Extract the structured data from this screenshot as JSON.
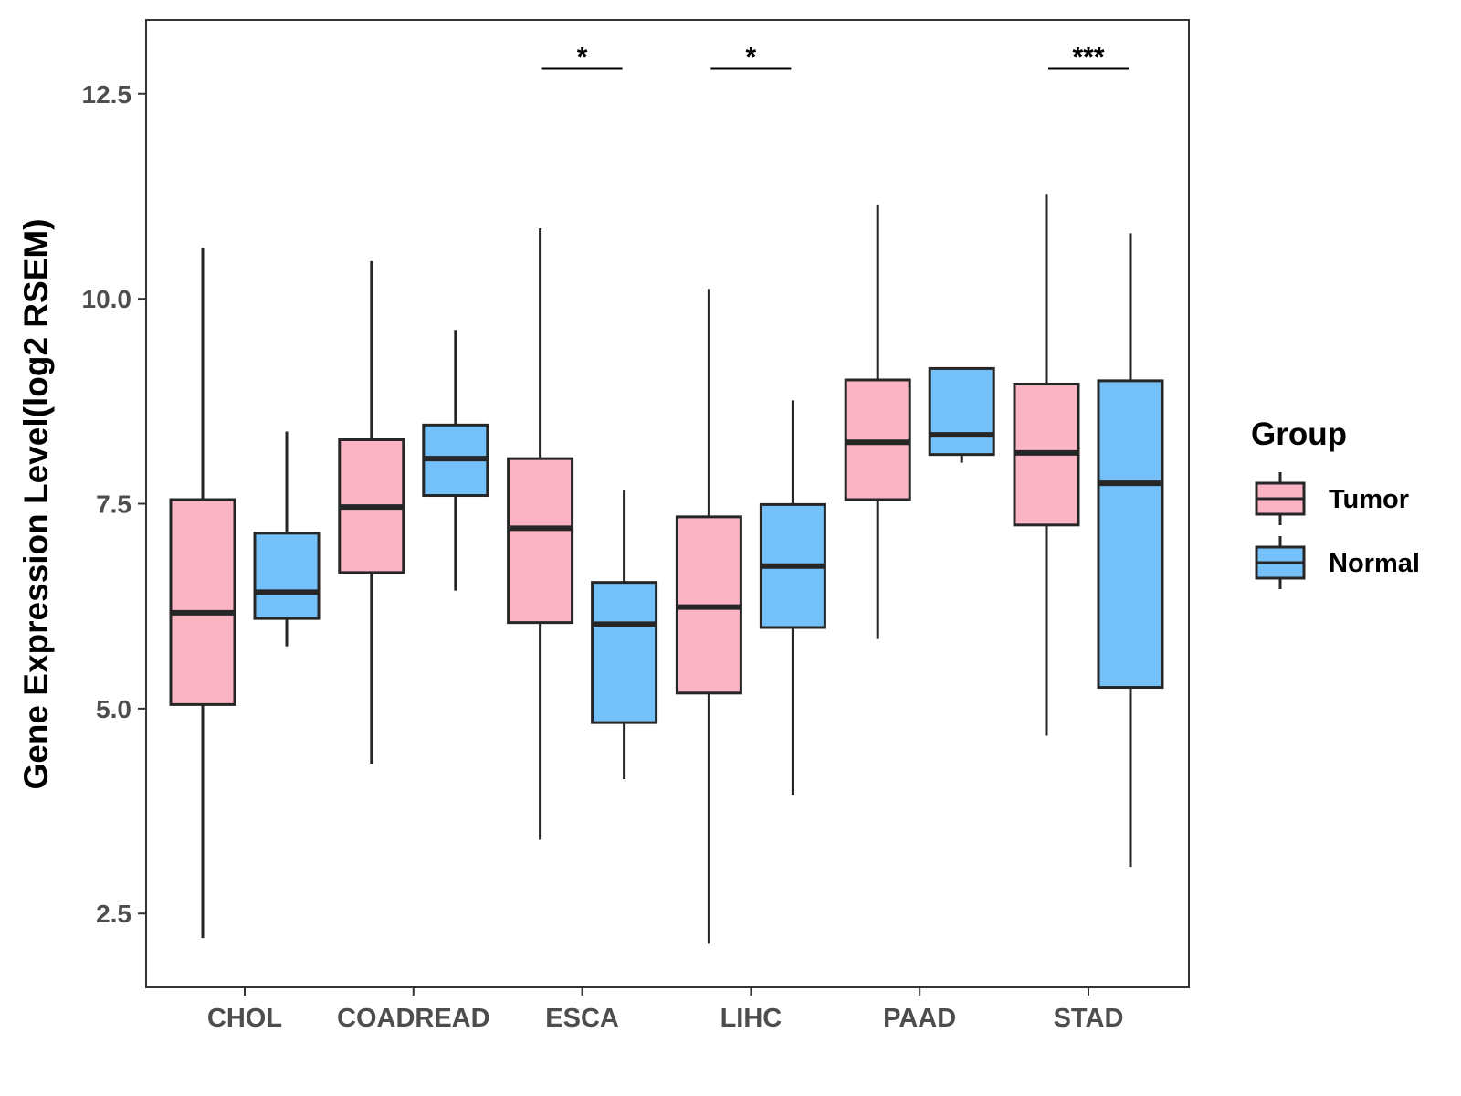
{
  "chart_data": {
    "type": "boxplot",
    "title": "",
    "xlabel": "",
    "ylabel": "Gene Expression Level(log2 RSEM)",
    "ylim": [
      1.6,
      13.4
    ],
    "y_ticks": [
      "2.5",
      "5.0",
      "7.5",
      "10.0",
      "12.5"
    ],
    "categories": [
      "CHOL",
      "COADREAD",
      "ESCA",
      "LIHC",
      "PAAD",
      "STAD"
    ],
    "legend": {
      "title": "Group",
      "position": "right",
      "entries": [
        {
          "name": "Tumor",
          "color": "#FBB4C4"
        },
        {
          "name": "Normal",
          "color": "#74C0F8"
        }
      ]
    },
    "series": [
      {
        "name": "Tumor",
        "color": "#FBB4C4",
        "boxes": [
          {
            "min": 2.2,
            "q1": 5.05,
            "median": 6.17,
            "q3": 7.55,
            "max": 10.62
          },
          {
            "min": 4.33,
            "q1": 6.66,
            "median": 7.46,
            "q3": 8.28,
            "max": 10.46
          },
          {
            "min": 3.4,
            "q1": 6.05,
            "median": 7.2,
            "q3": 8.05,
            "max": 10.86
          },
          {
            "min": 2.13,
            "q1": 5.19,
            "median": 6.24,
            "q3": 7.34,
            "max": 10.12
          },
          {
            "min": 5.85,
            "q1": 7.55,
            "median": 8.25,
            "q3": 9.01,
            "max": 11.15
          },
          {
            "min": 4.67,
            "q1": 7.24,
            "median": 8.12,
            "q3": 8.96,
            "max": 11.28
          }
        ]
      },
      {
        "name": "Normal",
        "color": "#74C0F8",
        "boxes": [
          {
            "min": 5.76,
            "q1": 6.1,
            "median": 6.42,
            "q3": 7.14,
            "max": 8.38
          },
          {
            "min": 6.44,
            "q1": 7.6,
            "median": 8.05,
            "q3": 8.46,
            "max": 9.62
          },
          {
            "min": 4.14,
            "q1": 4.83,
            "median": 6.03,
            "q3": 6.54,
            "max": 7.67
          },
          {
            "min": 3.95,
            "q1": 5.99,
            "median": 6.74,
            "q3": 7.49,
            "max": 8.76
          },
          {
            "min": 8.0,
            "q1": 8.1,
            "median": 8.34,
            "q3": 9.15,
            "max": 9.15
          },
          {
            "min": 3.07,
            "q1": 5.26,
            "median": 7.75,
            "q3": 9.0,
            "max": 10.8
          }
        ]
      }
    ],
    "significance": [
      {
        "category": "ESCA",
        "label": "*"
      },
      {
        "category": "LIHC",
        "label": "*"
      },
      {
        "category": "STAD",
        "label": "***"
      }
    ]
  }
}
